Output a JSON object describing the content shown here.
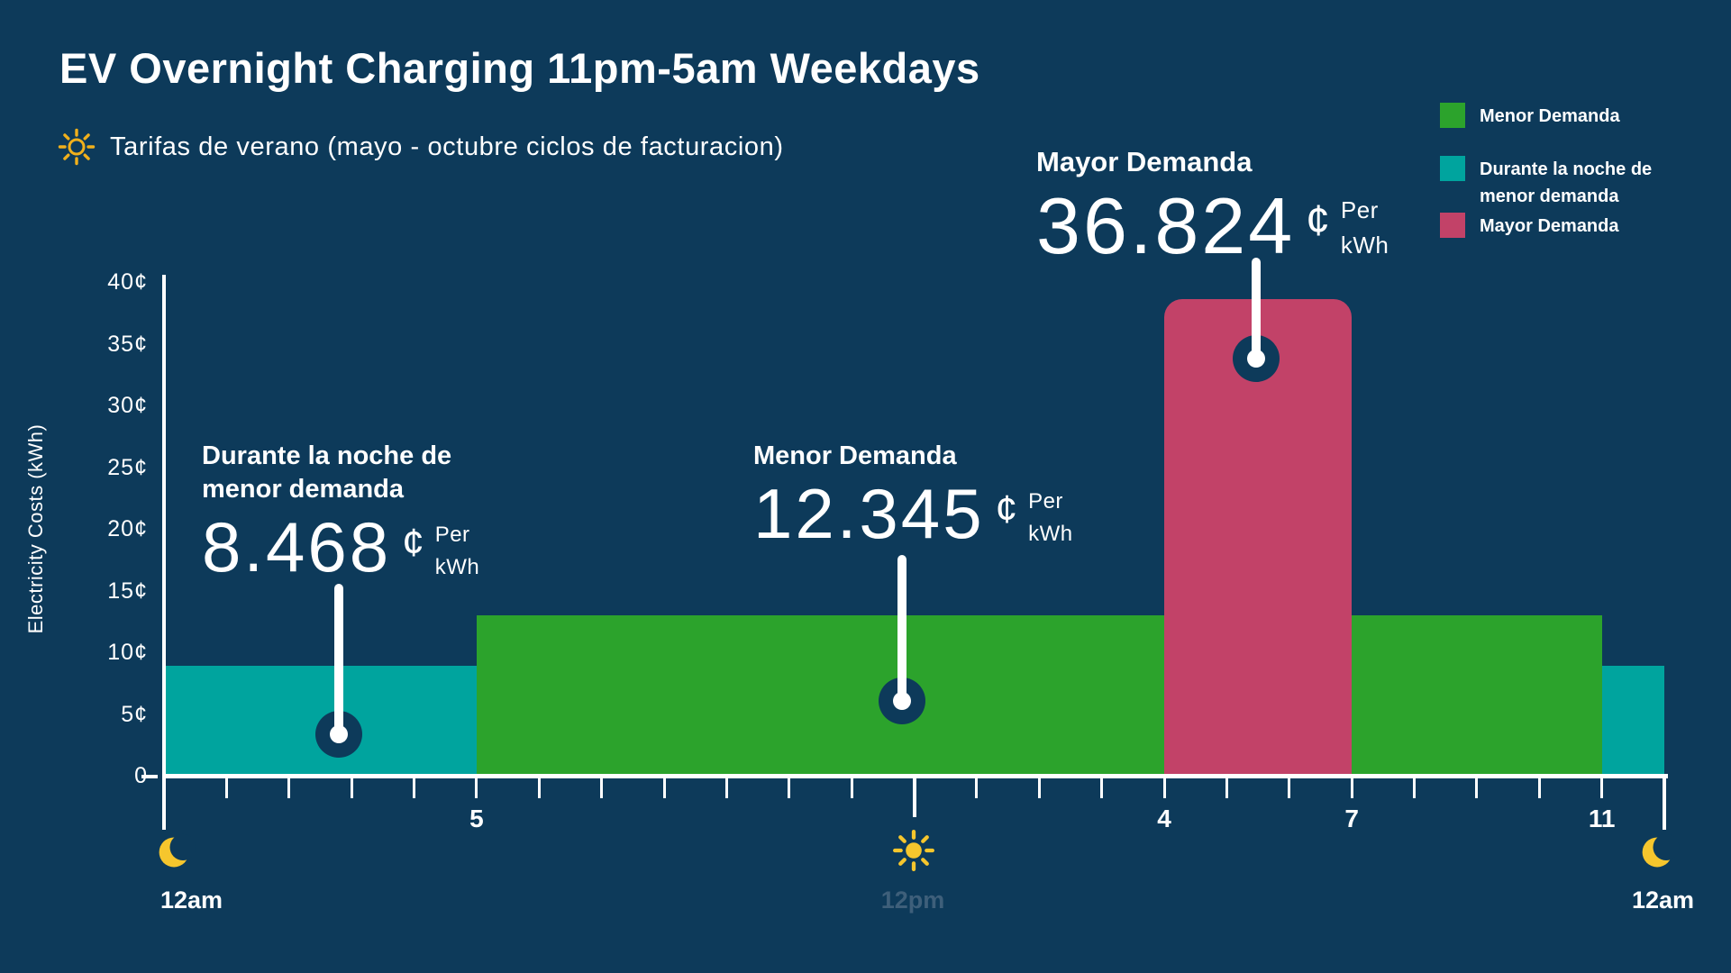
{
  "header": {
    "title": "EV Overnight Charging 11pm-5am Weekdays",
    "subtitle": "Tarifas de verano (mayo - octubre ciclos de facturacion)"
  },
  "legend": {
    "items": [
      {
        "label": "Menor Demanda",
        "color": "#2ca32c"
      },
      {
        "label": "Durante la noche de menor demanda",
        "color": "#00a49e"
      },
      {
        "label": "Mayor Demanda",
        "color": "#c24268"
      }
    ]
  },
  "annotations": [
    {
      "heading": "Durante la noche de menor demanda",
      "value": "8.468",
      "cent": "¢",
      "per": "Per",
      "kwh": "kWh"
    },
    {
      "heading": "Menor Demanda",
      "value": "12.345",
      "cent": "¢",
      "per": "Per",
      "kwh": "kWh"
    },
    {
      "heading": "Mayor Demanda",
      "value": "36.824",
      "cent": "¢",
      "per": "Per",
      "kwh": "kWh"
    }
  ],
  "chart_data": {
    "type": "bar",
    "title": "EV Overnight Charging 11pm-5am Weekdays",
    "subtitle": "Tarifas de verano (mayo - octubre ciclos de facturacion)",
    "ylabel": "Electricity Costs (kWh)",
    "ylim": [
      0,
      40
    ],
    "y_ticks": [
      {
        "label": "40¢",
        "cents": 40
      },
      {
        "label": "35¢",
        "cents": 35
      },
      {
        "label": "30¢",
        "cents": 30
      },
      {
        "label": "25¢",
        "cents": 25
      },
      {
        "label": "20¢",
        "cents": 20
      },
      {
        "label": "15¢",
        "cents": 15
      },
      {
        "label": "10¢",
        "cents": 10
      },
      {
        "label": "5¢",
        "cents": 5
      },
      {
        "label": "0",
        "cents": 0
      }
    ],
    "x_axis": {
      "start_hour": 0,
      "end_hour": 24,
      "tick_every_hours": 1
    },
    "x_tick_labels": [
      {
        "hour": 5,
        "label": "5"
      },
      {
        "hour": 16,
        "label": "4"
      },
      {
        "hour": 19,
        "label": "7"
      },
      {
        "hour": 23,
        "label": "11"
      }
    ],
    "day_markers": [
      {
        "hour": 0,
        "label": "12am",
        "icon": "moon"
      },
      {
        "hour": 12,
        "label": "12pm",
        "icon": "sun"
      },
      {
        "hour": 24,
        "label": "12am",
        "icon": "moon"
      }
    ],
    "segments": [
      {
        "period": "12am-5am",
        "start_hour": 0,
        "end_hour": 5,
        "label": "Durante la noche de menor demanda",
        "rate_cents_per_kwh": 8.468,
        "drawn_cents": 9.0,
        "color": "#00a49e",
        "rounded_top": false
      },
      {
        "period": "5am-4pm",
        "start_hour": 5,
        "end_hour": 16,
        "label": "Menor Demanda",
        "rate_cents_per_kwh": 12.345,
        "drawn_cents": 13.1,
        "color": "#2ca32c",
        "rounded_top": false
      },
      {
        "period": "4pm-7pm",
        "start_hour": 16,
        "end_hour": 19,
        "label": "Mayor Demanda",
        "rate_cents_per_kwh": 36.824,
        "drawn_cents": 38.7,
        "color": "#c24268",
        "rounded_top": true
      },
      {
        "period": "7pm-11pm",
        "start_hour": 19,
        "end_hour": 23,
        "label": "Menor Demanda",
        "rate_cents_per_kwh": 12.345,
        "drawn_cents": 13.1,
        "color": "#2ca32c",
        "rounded_top": false
      },
      {
        "period": "11pm-12am",
        "start_hour": 23,
        "end_hour": 24,
        "label": "Durante la noche de menor demanda",
        "rate_cents_per_kwh": 8.468,
        "drawn_cents": 9.0,
        "color": "#00a49e",
        "rounded_top": false
      }
    ],
    "colors": {
      "background": "#0d3a5a",
      "axis": "#ffffff",
      "accent_yellow": "#f6c62d",
      "muted_label": "#3e5f7a"
    }
  }
}
